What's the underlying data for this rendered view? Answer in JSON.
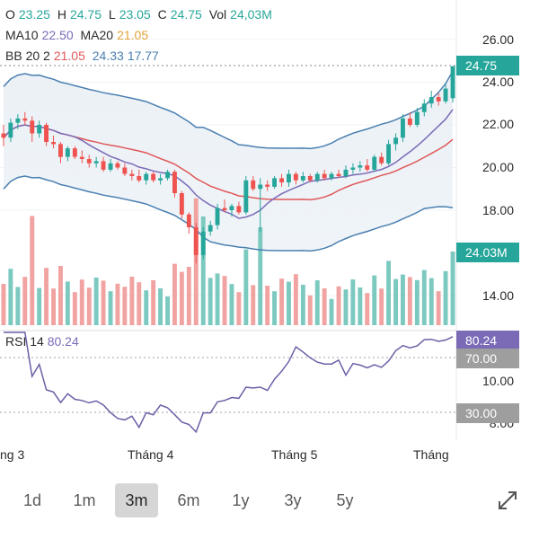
{
  "ohlc": {
    "o_label": "O",
    "o_value": "23.25",
    "h_label": "H",
    "h_value": "24.75",
    "l_label": "L",
    "l_value": "23.05",
    "c_label": "C",
    "c_value": "24.75",
    "vol_label": "Vol",
    "vol_value": "24,03M"
  },
  "ma": {
    "ma10_label": "MA10",
    "ma10_value": "22.50",
    "ma20_label": "MA20",
    "ma20_value": "21.05"
  },
  "bb": {
    "label": "BB 20 2",
    "middle": "21.05",
    "upper": "24.33",
    "lower": "17.77"
  },
  "y_axis": [
    "26.00",
    "24.00",
    "22.00",
    "20.00",
    "18.00",
    "14.00",
    "10.00",
    "8.00"
  ],
  "price_tag": "24.75",
  "volume_tag": "24.03M",
  "rsi": {
    "label": "RSI 14",
    "value": "80.24",
    "upper_level": "70.00",
    "lower_level": "30.00"
  },
  "x_axis": [
    "ng 3",
    "Tháng 4",
    "Tháng 5",
    "Tháng"
  ],
  "ranges": [
    "1d",
    "1m",
    "3m",
    "6m",
    "1y",
    "3y",
    "5y"
  ],
  "active_range": "3m",
  "colors": {
    "up": "#26a69a",
    "down": "#ef5350",
    "ma10": "#7b6bb7",
    "ma20": "#e05858",
    "bb": "#4a7fb0"
  },
  "expand_icon": "expand-icon",
  "chart_data": {
    "type": "candlestick",
    "series": [
      {
        "name": "Price",
        "ohlc": [
          [
            21.6,
            22.0,
            21.0,
            21.4
          ],
          [
            21.4,
            22.3,
            21.2,
            22.1
          ],
          [
            22.1,
            22.5,
            21.8,
            22.3
          ],
          [
            22.3,
            22.6,
            22.0,
            22.2
          ],
          [
            22.2,
            22.4,
            21.2,
            21.6
          ],
          [
            21.6,
            22.2,
            21.4,
            22.0
          ],
          [
            22.0,
            22.1,
            21.0,
            21.2
          ],
          [
            21.2,
            21.5,
            20.9,
            21.1
          ],
          [
            21.1,
            21.2,
            20.2,
            20.5
          ],
          [
            20.5,
            21.0,
            20.3,
            20.9
          ],
          [
            20.9,
            21.0,
            20.4,
            20.5
          ],
          [
            20.5,
            20.8,
            20.2,
            20.4
          ],
          [
            20.4,
            20.6,
            20.0,
            20.2
          ],
          [
            20.2,
            20.5,
            20.0,
            20.3
          ],
          [
            20.3,
            20.5,
            19.8,
            19.9
          ],
          [
            19.9,
            20.4,
            19.8,
            20.2
          ],
          [
            20.2,
            20.3,
            19.9,
            20.0
          ],
          [
            20.0,
            20.2,
            19.6,
            19.7
          ],
          [
            19.7,
            19.9,
            19.4,
            19.6
          ],
          [
            19.6,
            19.9,
            19.3,
            19.4
          ],
          [
            19.4,
            19.8,
            19.2,
            19.7
          ],
          [
            19.7,
            19.8,
            19.3,
            19.4
          ],
          [
            19.4,
            19.7,
            19.2,
            19.5
          ],
          [
            19.5,
            19.9,
            19.4,
            19.8
          ],
          [
            19.8,
            19.9,
            18.6,
            18.8
          ],
          [
            18.8,
            18.9,
            17.6,
            17.8
          ],
          [
            17.8,
            17.9,
            16.9,
            17.2
          ],
          [
            17.2,
            17.4,
            15.5,
            15.9
          ],
          [
            15.9,
            17.2,
            15.7,
            17.0
          ],
          [
            17.0,
            17.5,
            16.8,
            17.3
          ],
          [
            17.3,
            18.3,
            17.1,
            18.1
          ],
          [
            18.1,
            18.5,
            17.9,
            18.0
          ],
          [
            18.0,
            18.3,
            17.7,
            18.2
          ],
          [
            18.2,
            18.4,
            17.8,
            17.9
          ],
          [
            17.9,
            19.6,
            17.8,
            19.4
          ],
          [
            19.4,
            19.6,
            18.9,
            19.0
          ],
          [
            19.0,
            19.5,
            17.0,
            19.2
          ],
          [
            19.2,
            19.4,
            18.9,
            19.1
          ],
          [
            19.1,
            19.6,
            19.0,
            19.5
          ],
          [
            19.5,
            19.7,
            19.1,
            19.3
          ],
          [
            19.3,
            19.9,
            19.1,
            19.7
          ],
          [
            19.7,
            19.8,
            19.2,
            19.4
          ],
          [
            19.4,
            19.8,
            19.3,
            19.6
          ],
          [
            19.6,
            19.7,
            19.3,
            19.4
          ],
          [
            19.4,
            19.8,
            19.3,
            19.7
          ],
          [
            19.7,
            19.9,
            19.4,
            19.5
          ],
          [
            19.5,
            19.8,
            19.4,
            19.7
          ],
          [
            19.7,
            19.9,
            19.5,
            19.6
          ],
          [
            19.6,
            20.1,
            19.5,
            19.9
          ],
          [
            19.9,
            20.2,
            19.7,
            20.0
          ],
          [
            20.0,
            20.3,
            19.8,
            20.1
          ],
          [
            20.1,
            20.4,
            19.8,
            19.9
          ],
          [
            19.9,
            20.6,
            19.8,
            20.5
          ],
          [
            20.5,
            20.7,
            20.1,
            20.2
          ],
          [
            20.2,
            21.3,
            20.1,
            21.1
          ],
          [
            21.1,
            21.6,
            20.8,
            21.4
          ],
          [
            21.4,
            22.5,
            21.2,
            22.3
          ],
          [
            22.3,
            22.6,
            21.9,
            22.0
          ],
          [
            22.0,
            22.8,
            21.9,
            22.6
          ],
          [
            22.6,
            23.2,
            22.4,
            23.0
          ],
          [
            23.0,
            23.6,
            22.8,
            23.3
          ],
          [
            23.3,
            23.5,
            22.9,
            23.1
          ],
          [
            23.1,
            23.9,
            23.0,
            23.7
          ],
          [
            23.25,
            24.75,
            23.05,
            24.75
          ]
        ]
      }
    ]
  }
}
